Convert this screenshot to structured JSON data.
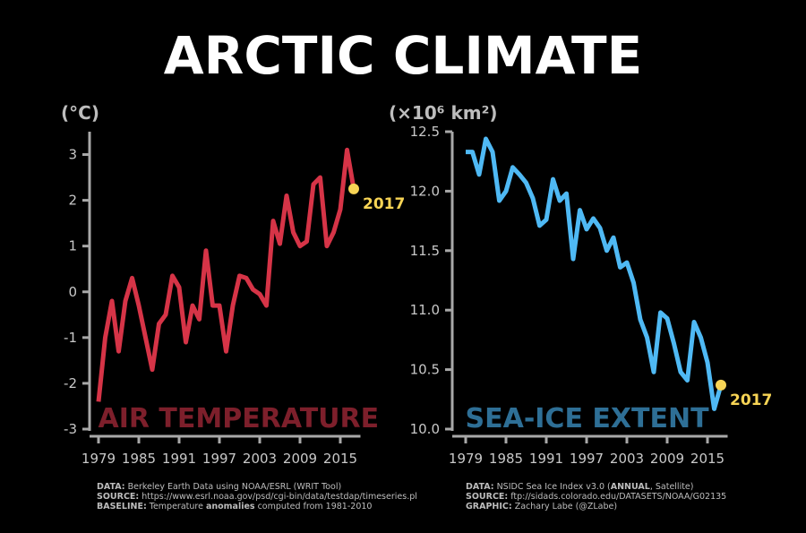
{
  "title": "ARCTIC CLIMATE",
  "notes": [
    [
      [
        {
          "text": "DATA:",
          "bold": true
        },
        {
          "text": "Berkeley Earth Data using NOAA/ESRL (WRIT Tool)",
          "bold": false
        }
      ],
      [
        {
          "text": "SOURCE:",
          "bold": true
        },
        {
          "text": "https://www.esrl.noaa.gov/psd/cgi-bin/data/testdap/timeseries.pl",
          "bold": false
        }
      ],
      [
        {
          "text": "BASELINE:",
          "bold": true
        },
        {
          "text": "Temperature",
          "bold": false
        },
        {
          "text": "anomalies",
          "bold": true
        },
        {
          "text": "computed from 1981-2010",
          "bold": false
        }
      ]
    ],
    [
      [
        {
          "text": "DATA:",
          "bold": true
        },
        {
          "text": "NSIDC Sea Ice Index v3.0 (",
          "bold": false
        },
        {
          "text": "ANNUAL",
          "bold": true
        },
        {
          "text": ", Satellite)",
          "bold": false
        }
      ],
      [
        {
          "text": "SOURCE:",
          "bold": true
        },
        {
          "text": "ftp://sidads.colorado.edu/DATASETS/NOAA/G02135",
          "bold": false
        }
      ],
      [
        {
          "text": "GRAPHIC:",
          "bold": true
        },
        {
          "text": "Zachary Labe (@ZLabe)",
          "bold": false
        }
      ]
    ]
  ],
  "chart_data": [
    {
      "type": "line",
      "title": "AIR TEMPERATURE",
      "title_color": "#7d1f2b",
      "ylabel": "(°C)",
      "color": "#d63447",
      "highlight_color": "#f7d455",
      "x": [
        1979,
        1980,
        1981,
        1982,
        1983,
        1984,
        1985,
        1986,
        1987,
        1988,
        1989,
        1990,
        1991,
        1992,
        1993,
        1994,
        1995,
        1996,
        1997,
        1998,
        1999,
        2000,
        2001,
        2002,
        2003,
        2004,
        2005,
        2006,
        2007,
        2008,
        2009,
        2010,
        2011,
        2012,
        2013,
        2014,
        2015,
        2016,
        2017
      ],
      "values": [
        -2.4,
        -1.0,
        -0.2,
        -1.3,
        -0.2,
        0.3,
        -0.3,
        -1.0,
        -1.7,
        -0.7,
        -0.5,
        0.35,
        0.1,
        -1.1,
        -0.3,
        -0.6,
        0.9,
        -0.3,
        -0.3,
        -1.3,
        -0.3,
        0.35,
        0.3,
        0.05,
        -0.05,
        -0.3,
        1.55,
        1.05,
        2.1,
        1.3,
        1.0,
        1.1,
        2.35,
        2.5,
        1.0,
        1.3,
        1.8,
        3.1,
        2.25
      ],
      "xlim": [
        1978,
        2018
      ],
      "ylim": [
        -3,
        3.5
      ],
      "xticks": [
        1979,
        1985,
        1991,
        1997,
        2003,
        2009,
        2015
      ],
      "yticks": [
        3,
        2,
        1,
        0,
        -1,
        -2,
        -3
      ]
    },
    {
      "type": "line",
      "title": "SEA-ICE EXTENT",
      "title_color": "#2e6f96",
      "ylabel": "(×10⁶ km²)",
      "color": "#4fb9f4",
      "highlight_color": "#f7d455",
      "x": [
        1979,
        1980,
        1981,
        1982,
        1983,
        1984,
        1985,
        1986,
        1987,
        1988,
        1989,
        1990,
        1991,
        1992,
        1993,
        1994,
        1995,
        1996,
        1997,
        1998,
        1999,
        2000,
        2001,
        2002,
        2003,
        2004,
        2005,
        2006,
        2007,
        2008,
        2009,
        2010,
        2011,
        2012,
        2013,
        2014,
        2015,
        2016,
        2017
      ],
      "values": [
        12.33,
        12.33,
        12.14,
        12.44,
        12.33,
        11.92,
        12.0,
        12.2,
        12.14,
        12.07,
        11.94,
        11.71,
        11.76,
        12.1,
        11.92,
        11.98,
        11.43,
        11.84,
        11.68,
        11.77,
        11.69,
        11.5,
        11.61,
        11.36,
        11.4,
        11.23,
        10.92,
        10.77,
        10.48,
        10.98,
        10.93,
        10.72,
        10.48,
        10.41,
        10.9,
        10.77,
        10.56,
        10.17,
        10.37
      ],
      "xlim": [
        1978,
        2018
      ],
      "ylim": [
        10.0,
        12.5
      ],
      "xticks": [
        1979,
        1985,
        1991,
        1997,
        2003,
        2009,
        2015
      ],
      "yticks": [
        12.5,
        {
          "value": 12.0,
          "label": "12.0"
        },
        11.5,
        {
          "value": 11.0,
          "label": "11.0"
        },
        10.5,
        {
          "value": 10.0,
          "label": "10.0"
        }
      ]
    }
  ]
}
